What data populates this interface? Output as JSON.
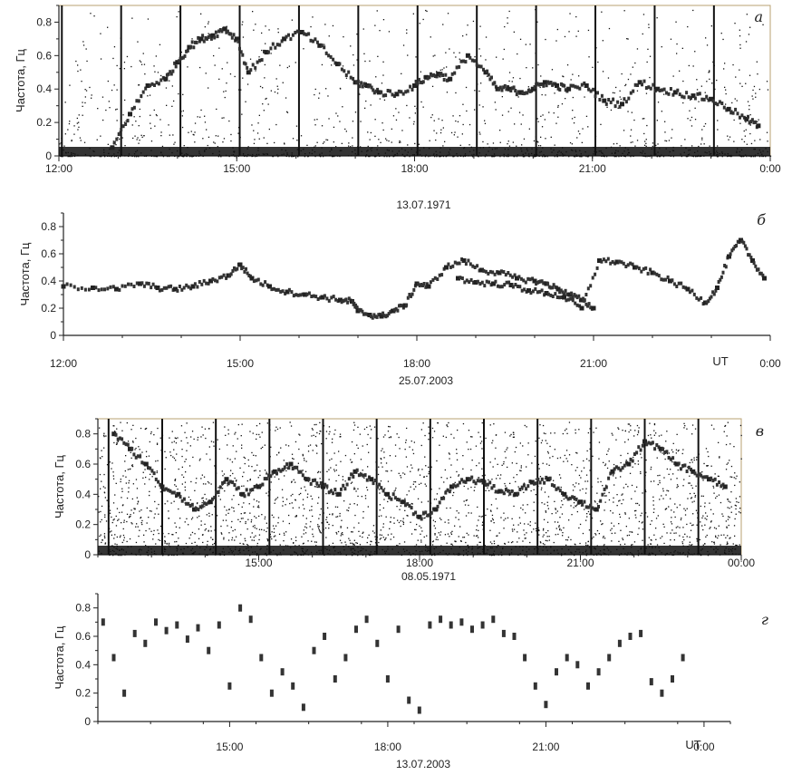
{
  "chart_data": [
    {
      "id": "a",
      "type": "scatter",
      "panel_label": "а",
      "ylabel": "Частота, Гц",
      "ylim": [
        0,
        0.9
      ],
      "yticks": [
        "0",
        "0.2",
        "0.4",
        "0.6",
        "0.8"
      ],
      "xlim": [
        0,
        12
      ],
      "xticks": [
        "12:00",
        "15:00",
        "18:00",
        "21:00",
        "0:00"
      ],
      "date": "13.07.1971",
      "unit_label": "",
      "style": "spectrogram",
      "series": [
        {
          "x": [
            0.9,
            1.2,
            1.5,
            1.8,
            2.0,
            2.2,
            2.4,
            2.6,
            2.8,
            3.0,
            3.2,
            3.5,
            3.8,
            4.1,
            4.4,
            4.7,
            5.0,
            5.2,
            5.4,
            5.7,
            6.0,
            6.2,
            6.4,
            6.6,
            6.9,
            7.2,
            7.4,
            7.6,
            7.8,
            8.0,
            8.2,
            8.4,
            8.6,
            8.9,
            9.2,
            9.5,
            9.8,
            10.1,
            10.4,
            10.7,
            11.0,
            11.3,
            11.6,
            11.8
          ],
          "y": [
            0.05,
            0.25,
            0.42,
            0.46,
            0.56,
            0.65,
            0.7,
            0.72,
            0.76,
            0.7,
            0.5,
            0.62,
            0.7,
            0.74,
            0.66,
            0.55,
            0.44,
            0.42,
            0.38,
            0.37,
            0.42,
            0.47,
            0.49,
            0.46,
            0.6,
            0.5,
            0.4,
            0.4,
            0.38,
            0.4,
            0.44,
            0.42,
            0.4,
            0.42,
            0.33,
            0.31,
            0.44,
            0.4,
            0.38,
            0.36,
            0.34,
            0.28,
            0.22,
            0.18
          ]
        }
      ]
    },
    {
      "id": "b",
      "type": "scatter",
      "panel_label": "б",
      "ylabel": "Частота, Гц",
      "ylim": [
        0,
        0.9
      ],
      "yticks": [
        "0",
        "0.2",
        "0.4",
        "0.6",
        "0.8"
      ],
      "xlim": [
        0,
        12
      ],
      "xticks": [
        "12:00",
        "15:00",
        "18:00",
        "21:00",
        "0:00"
      ],
      "date": "25.07.2003",
      "unit_label": "UT",
      "style": "line",
      "series": [
        {
          "x": [
            0.0,
            0.5,
            0.9,
            1.3,
            1.6,
            1.9,
            2.2,
            2.5,
            2.8,
            3.0,
            3.2,
            3.5,
            3.8,
            4.1,
            4.4,
            4.7,
            4.9,
            5.0,
            5.2,
            5.4,
            5.6,
            5.8,
            6.0,
            6.2,
            6.5,
            6.8,
            7.1,
            7.4,
            7.7,
            8.0,
            8.2,
            8.4,
            8.6,
            8.8,
            9.0
          ],
          "y": [
            0.36,
            0.35,
            0.34,
            0.38,
            0.35,
            0.34,
            0.36,
            0.4,
            0.44,
            0.52,
            0.42,
            0.36,
            0.32,
            0.3,
            0.28,
            0.26,
            0.25,
            0.18,
            0.15,
            0.14,
            0.18,
            0.22,
            0.38,
            0.36,
            0.5,
            0.55,
            0.48,
            0.46,
            0.42,
            0.4,
            0.38,
            0.34,
            0.3,
            0.26,
            0.2
          ]
        },
        {
          "x": [
            6.7,
            7.0,
            7.3,
            7.6,
            7.9,
            8.2,
            8.5,
            8.8,
            9.1,
            9.4,
            9.7,
            10.0,
            10.3,
            10.6,
            10.9,
            11.1,
            11.3,
            11.5,
            11.7,
            11.9
          ],
          "y": [
            0.42,
            0.39,
            0.38,
            0.37,
            0.33,
            0.31,
            0.28,
            0.2,
            0.55,
            0.54,
            0.5,
            0.46,
            0.4,
            0.34,
            0.24,
            0.35,
            0.58,
            0.7,
            0.55,
            0.42
          ]
        }
      ]
    },
    {
      "id": "c",
      "type": "scatter",
      "panel_label": "в",
      "ylabel": "Частота, Гц",
      "ylim": [
        0,
        0.9
      ],
      "yticks": [
        "0",
        "0.2",
        "0.4",
        "0.6",
        "0.8"
      ],
      "xlim": [
        0,
        12
      ],
      "xticks": [
        "15:00",
        "18:00",
        "21:00",
        "00:00"
      ],
      "xtick_pos": [
        3,
        6,
        9,
        12
      ],
      "date": "08.05.1971",
      "unit_label": "",
      "style": "spectrogram",
      "series": [
        {
          "x": [
            0.3,
            0.6,
            0.9,
            1.2,
            1.5,
            1.8,
            2.1,
            2.4,
            2.7,
            3.0,
            3.3,
            3.6,
            3.9,
            4.2,
            4.5,
            4.8,
            5.1,
            5.4,
            5.7,
            6.0,
            6.3,
            6.6,
            6.9,
            7.2,
            7.5,
            7.8,
            8.1,
            8.4,
            8.7,
            9.0,
            9.3,
            9.6,
            9.9,
            10.2,
            10.5,
            10.8,
            11.1,
            11.4,
            11.7
          ],
          "y": [
            0.8,
            0.7,
            0.6,
            0.45,
            0.4,
            0.3,
            0.35,
            0.5,
            0.4,
            0.45,
            0.55,
            0.6,
            0.5,
            0.45,
            0.4,
            0.55,
            0.5,
            0.4,
            0.35,
            0.25,
            0.3,
            0.45,
            0.5,
            0.48,
            0.42,
            0.4,
            0.48,
            0.5,
            0.4,
            0.35,
            0.3,
            0.55,
            0.6,
            0.75,
            0.7,
            0.6,
            0.55,
            0.5,
            0.45
          ]
        }
      ]
    },
    {
      "id": "d",
      "type": "scatter",
      "panel_label": "г",
      "ylabel": "Частота, Гц",
      "ylim": [
        0,
        0.9
      ],
      "yticks": [
        "0",
        "0.2",
        "0.4",
        "0.6",
        "0.8"
      ],
      "xlim": [
        0,
        12
      ],
      "xticks": [
        "15:00",
        "18:00",
        "21:00",
        "0:00"
      ],
      "xtick_pos": [
        2.5,
        5.5,
        8.5,
        11.5
      ],
      "date": "13.07.2003",
      "unit_label": "UT",
      "style": "segments",
      "series": [
        {
          "x": [
            0.1,
            0.3,
            0.5,
            0.7,
            0.9,
            1.1,
            1.3,
            1.5,
            1.7,
            1.9,
            2.1,
            2.3,
            2.5,
            2.7,
            2.9,
            3.1,
            3.3,
            3.5,
            3.7,
            3.9,
            4.1,
            4.3,
            4.5,
            4.7,
            4.9,
            5.1,
            5.3,
            5.5,
            5.7,
            5.9,
            6.1,
            6.3,
            6.5,
            6.7,
            6.9,
            7.1,
            7.3,
            7.5,
            7.7,
            7.9,
            8.1,
            8.3,
            8.5,
            8.7,
            8.9,
            9.1,
            9.3,
            9.5,
            9.7,
            9.9,
            10.1,
            10.3,
            10.5,
            10.7,
            10.9,
            11.1
          ],
          "y": [
            0.7,
            0.45,
            0.2,
            0.62,
            0.55,
            0.7,
            0.64,
            0.68,
            0.58,
            0.66,
            0.5,
            0.68,
            0.25,
            0.8,
            0.72,
            0.45,
            0.2,
            0.35,
            0.25,
            0.1,
            0.5,
            0.6,
            0.3,
            0.45,
            0.65,
            0.72,
            0.55,
            0.3,
            0.65,
            0.15,
            0.08,
            0.68,
            0.72,
            0.68,
            0.7,
            0.65,
            0.68,
            0.72,
            0.62,
            0.6,
            0.45,
            0.25,
            0.12,
            0.35,
            0.45,
            0.4,
            0.25,
            0.35,
            0.45,
            0.55,
            0.6,
            0.62,
            0.28,
            0.2,
            0.3,
            0.45
          ]
        }
      ]
    }
  ]
}
